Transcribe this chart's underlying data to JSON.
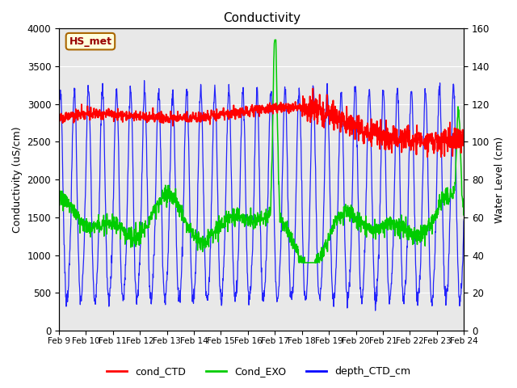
{
  "title": "Conductivity",
  "ylabel_left": "Conductivity (uS/cm)",
  "ylabel_right": "Water Level (cm)",
  "ylim_left": [
    0,
    4000
  ],
  "ylim_right": [
    0,
    160
  ],
  "background_color": "#ffffff",
  "plot_bg_color": "#e8e8e8",
  "grid_color": "#ffffff",
  "legend_labels": [
    "cond_CTD",
    "Cond_EXO",
    "depth_CTD_cm"
  ],
  "legend_colors": [
    "#ff0000",
    "#00cc00",
    "#0000ff"
  ],
  "box_label": "HS_met",
  "box_facecolor": "#ffffdd",
  "box_edgecolor": "#aa6600",
  "xtick_labels": [
    "Feb 9",
    "Feb 10",
    "Feb 11",
    "Feb 12",
    "Feb 13",
    "Feb 14",
    "Feb 15",
    "Feb 16",
    "Feb 17",
    "Feb 18",
    "Feb 19",
    "Feb 20",
    "Feb 21",
    "Feb 22",
    "Feb 23",
    "Feb 24"
  ],
  "n_points": 1500
}
